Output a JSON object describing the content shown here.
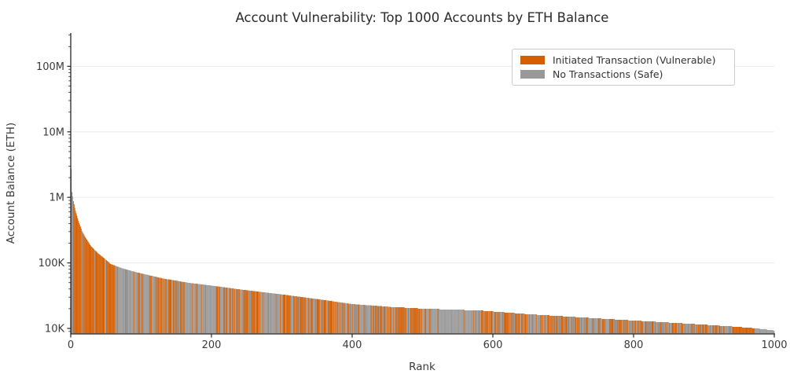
{
  "figure": {
    "title": "Account Vulnerability: Top 1000 Accounts by ETH Balance",
    "xlabel": "Rank",
    "ylabel": "Account Balance (ETH)"
  },
  "chart_data": {
    "type": "bar",
    "title": "Account Vulnerability: Top 1000 Accounts by ETH Balance",
    "xlabel": "Rank",
    "ylabel": "Account Balance (ETH)",
    "yscale": "log",
    "xlim": [
      0,
      1000
    ],
    "ylim": [
      8500,
      320000000
    ],
    "x_ticks": [
      0,
      200,
      400,
      600,
      800,
      1000
    ],
    "y_ticks": [
      {
        "value": 10000,
        "label": "10K"
      },
      {
        "value": 100000,
        "label": "100K"
      },
      {
        "value": 1000000,
        "label": "1M"
      },
      {
        "value": 10000000,
        "label": "10M"
      },
      {
        "value": 100000000,
        "label": "100M"
      }
    ],
    "grid": "horizontal-major",
    "legend_position": "upper-right",
    "n_accounts": 1000,
    "bar_unit": "one bar per account rank, colored by transaction status",
    "series": [
      {
        "name": "Initiated Transaction (Vulnerable)",
        "color": "#D55E00"
      },
      {
        "name": "No Transactions (Safe)",
        "color": "#999999"
      }
    ],
    "colors": {
      "vulnerable": "#D55E00",
      "safe": "#999999",
      "spine": "#262626",
      "text": "#3a3a3a",
      "grid": "#ededed"
    },
    "envelope_points": [
      [
        0,
        2700000
      ],
      [
        1,
        1200000
      ],
      [
        3,
        880000
      ],
      [
        6,
        620000
      ],
      [
        10,
        440000
      ],
      [
        15,
        310000
      ],
      [
        20,
        245000
      ],
      [
        28,
        180000
      ],
      [
        38,
        140000
      ],
      [
        48,
        115000
      ],
      [
        56,
        96000
      ],
      [
        75,
        81000
      ],
      [
        90,
        73000
      ],
      [
        105,
        67000
      ],
      [
        130,
        58000
      ],
      [
        165,
        50000
      ],
      [
        200,
        45000
      ],
      [
        235,
        40000
      ],
      [
        270,
        36000
      ],
      [
        300,
        33000
      ],
      [
        350,
        28000
      ],
      [
        400,
        23500
      ],
      [
        450,
        21500
      ],
      [
        500,
        20000
      ],
      [
        535,
        19500
      ],
      [
        580,
        18800
      ],
      [
        610,
        17800
      ],
      [
        650,
        16500
      ],
      [
        700,
        15300
      ],
      [
        750,
        14200
      ],
      [
        800,
        13200
      ],
      [
        850,
        12300
      ],
      [
        900,
        11400
      ],
      [
        940,
        10700
      ],
      [
        970,
        10100
      ],
      [
        999,
        9300
      ]
    ],
    "vulnerable_pattern_segments": [
      {
        "from": 0,
        "to": 1,
        "p_vulnerable": 0.0
      },
      {
        "from": 1,
        "to": 56,
        "p_vulnerable": 0.78
      },
      {
        "from": 56,
        "to": 63,
        "p_vulnerable": 1.0
      },
      {
        "from": 63,
        "to": 76,
        "p_vulnerable": 0.15
      },
      {
        "from": 76,
        "to": 80,
        "p_vulnerable": 0.7
      },
      {
        "from": 80,
        "to": 96,
        "p_vulnerable": 0.25
      },
      {
        "from": 96,
        "to": 100,
        "p_vulnerable": 0.8
      },
      {
        "from": 100,
        "to": 116,
        "p_vulnerable": 0.2
      },
      {
        "from": 116,
        "to": 162,
        "p_vulnerable": 0.55
      },
      {
        "from": 162,
        "to": 205,
        "p_vulnerable": 0.12
      },
      {
        "from": 205,
        "to": 268,
        "p_vulnerable": 0.6
      },
      {
        "from": 268,
        "to": 302,
        "p_vulnerable": 0.2
      },
      {
        "from": 302,
        "to": 390,
        "p_vulnerable": 0.5
      },
      {
        "from": 390,
        "to": 460,
        "p_vulnerable": 0.4
      },
      {
        "from": 460,
        "to": 497,
        "p_vulnerable": 0.75
      },
      {
        "from": 497,
        "to": 530,
        "p_vulnerable": 0.3
      },
      {
        "from": 530,
        "to": 580,
        "p_vulnerable": 0.02
      },
      {
        "from": 580,
        "to": 700,
        "p_vulnerable": 0.55
      },
      {
        "from": 700,
        "to": 870,
        "p_vulnerable": 0.5
      },
      {
        "from": 870,
        "to": 940,
        "p_vulnerable": 0.45
      },
      {
        "from": 940,
        "to": 972,
        "p_vulnerable": 0.97
      },
      {
        "from": 972,
        "to": 1000,
        "p_vulnerable": 0.0
      }
    ],
    "random_seed": 1337
  }
}
